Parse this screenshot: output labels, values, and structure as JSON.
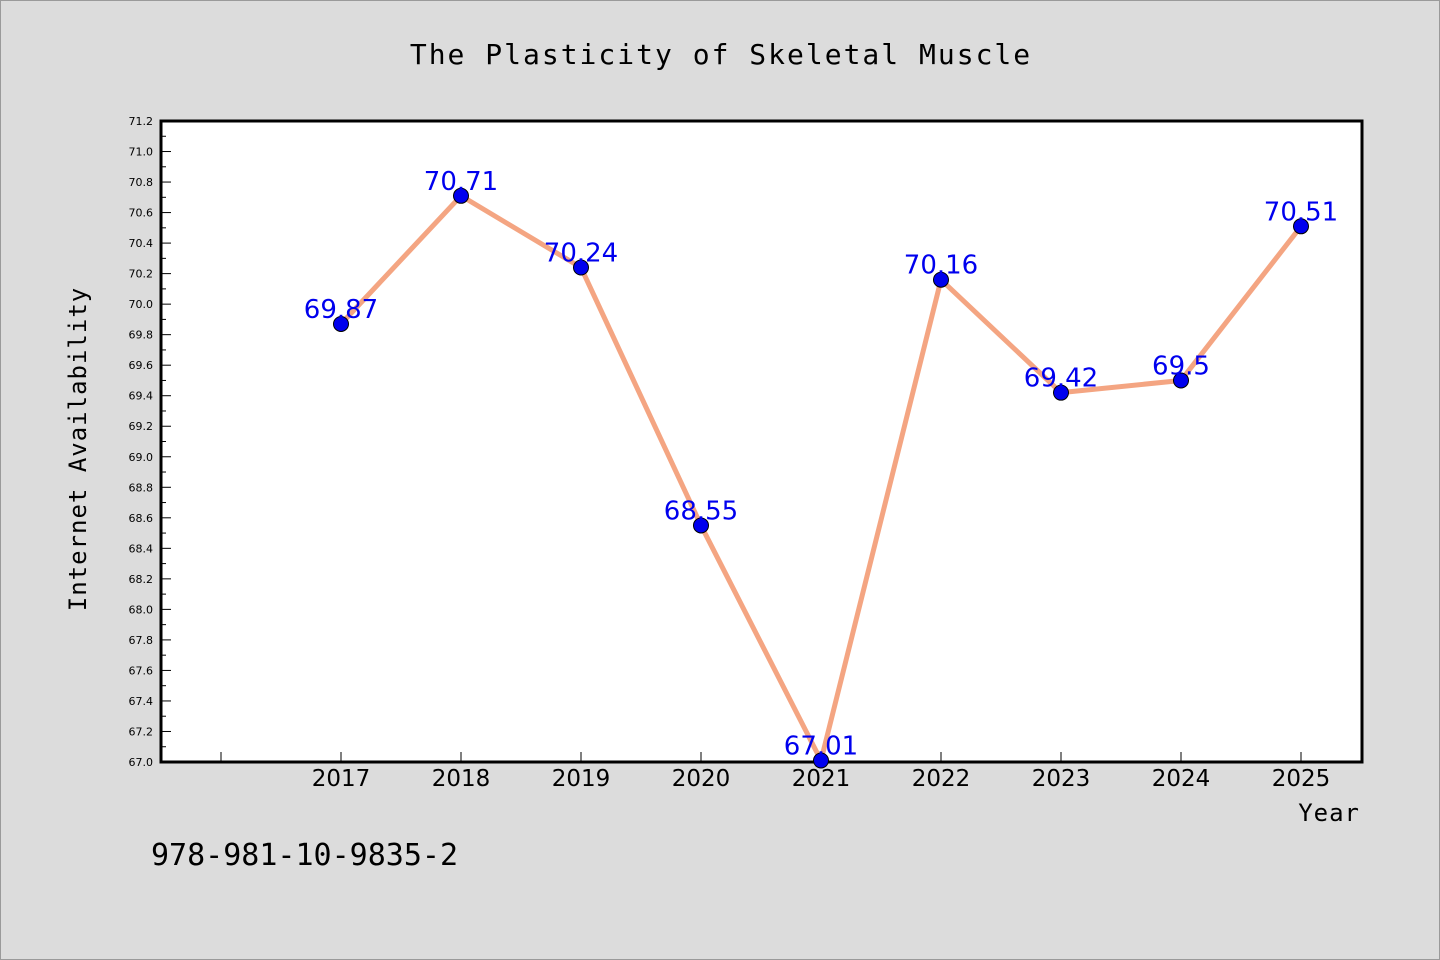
{
  "chart_data": {
    "type": "line",
    "title": "The Plasticity of Skeletal Muscle",
    "xlabel": "Year",
    "ylabel": "Internet Availability",
    "x": [
      "2017",
      "2018",
      "2019",
      "2020",
      "2021",
      "2022",
      "2023",
      "2024",
      "2025"
    ],
    "series": [
      {
        "values": [
          69.87,
          70.71,
          70.24,
          68.55,
          67.01,
          70.16,
          69.42,
          69.5,
          70.51
        ],
        "data_labels": [
          "69.87",
          "70.71",
          "70.24",
          "68.55",
          "67.01",
          "70.16",
          "69.42",
          "69.5",
          "70.51"
        ]
      }
    ],
    "ylim": [
      67.0,
      71.2
    ],
    "yticks": [
      "67.0",
      "67.2",
      "67.4",
      "67.6",
      "67.8",
      "68.0",
      "68.2",
      "68.4",
      "68.6",
      "68.8",
      "69.0",
      "69.2",
      "69.4",
      "69.6",
      "69.8",
      "70.0",
      "70.2",
      "70.4",
      "70.6",
      "70.8",
      "71.0",
      "71.2"
    ],
    "grid": false,
    "legend": "none",
    "colors": {
      "line": "#f4a582",
      "marker": "#0000ee",
      "data_label": "#0000ee"
    }
  },
  "footnote": "978-981-10-9835-2"
}
